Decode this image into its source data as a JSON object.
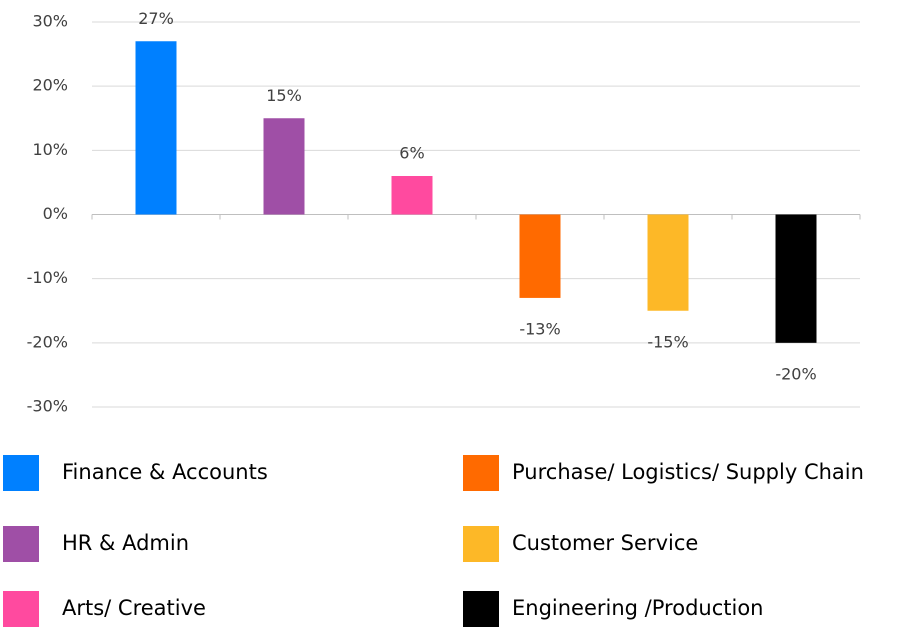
{
  "chart_data": {
    "type": "bar",
    "categories": [
      "Finance & Accounts",
      "HR & Admin",
      "Arts/ Creative",
      "Purchase/ Logistics/ Supply Chain",
      "Customer Service",
      "Engineering /Production"
    ],
    "values": [
      27,
      15,
      6,
      -13,
      -15,
      -20
    ],
    "value_labels": [
      "27%",
      "15%",
      "6%",
      "-13%",
      "-15%",
      "-20%"
    ],
    "colors": [
      "#0080ff",
      "#9f4fa6",
      "#ff4a9f",
      "#ff6a00",
      "#fdb827",
      "#000000"
    ],
    "ylim": [
      -30,
      30
    ],
    "yticks": [
      {
        "value": -30,
        "label": "-30%"
      },
      {
        "value": -20,
        "label": "-20%"
      },
      {
        "value": -10,
        "label": "-10%"
      },
      {
        "value": 0,
        "label": "0%"
      },
      {
        "value": 10,
        "label": "10%"
      },
      {
        "value": 20,
        "label": "20%"
      },
      {
        "value": 30,
        "label": "30%"
      }
    ],
    "grid": true,
    "legend": "bottom"
  }
}
